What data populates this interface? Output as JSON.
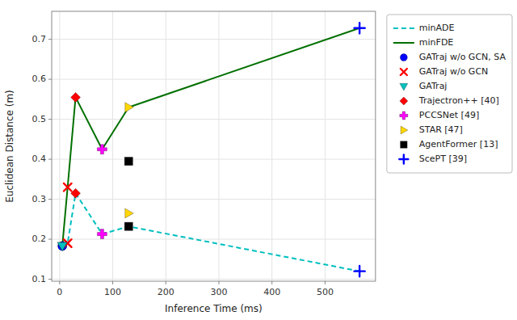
{
  "chart_data": {
    "type": "line",
    "xlabel": "Inference Time (ms)",
    "ylabel": "Euclidean Distance (m)",
    "xlim": [
      -15,
      595
    ],
    "ylim": [
      0.095,
      0.77
    ],
    "xticks": [
      0,
      100,
      200,
      300,
      400,
      500
    ],
    "yticks": [
      0.1,
      0.2,
      0.3,
      0.4,
      0.5,
      0.6,
      0.7
    ],
    "grid": true,
    "legend": "right",
    "series": [
      {
        "name": "minADE",
        "type": "line",
        "color": "#00BFBF",
        "line_style": "dashed",
        "x": [
          5,
          15,
          30,
          80,
          130,
          565
        ],
        "values": [
          0.183,
          0.19,
          0.315,
          0.213,
          0.232,
          0.12
        ]
      },
      {
        "name": "minFDE",
        "type": "line",
        "color": "#007000",
        "line_style": "solid",
        "x": [
          5,
          15,
          30,
          80,
          130,
          565
        ],
        "values": [
          0.183,
          0.33,
          0.555,
          0.425,
          0.53,
          0.728
        ]
      },
      {
        "name": "GATraj w/o GCN, SA",
        "type": "scatter",
        "marker": "circle",
        "color": "blue",
        "x": [
          5,
          5
        ],
        "values": [
          0.183,
          0.183
        ]
      },
      {
        "name": "GATraj w/o GCN",
        "type": "scatter",
        "marker": "x",
        "color": "red",
        "x": [
          15,
          15
        ],
        "values": [
          0.19,
          0.33
        ]
      },
      {
        "name": "GATraj",
        "type": "scatter",
        "marker": "triangle-down",
        "color": "#00BFBF",
        "x": [
          5,
          5
        ],
        "values": [
          0.183,
          0.183
        ]
      },
      {
        "name": "Trajectron++ [40]",
        "type": "scatter",
        "marker": "diamond",
        "color": "red",
        "x": [
          30,
          30
        ],
        "values": [
          0.315,
          0.555
        ]
      },
      {
        "name": "PCCSNet [49]",
        "type": "scatter",
        "marker": "plus-filled",
        "color": "magenta",
        "x": [
          80,
          80
        ],
        "values": [
          0.213,
          0.425
        ]
      },
      {
        "name": "STAR [47]",
        "type": "scatter",
        "marker": "triangle-right",
        "color": "gold",
        "x": [
          130,
          130
        ],
        "values": [
          0.265,
          0.53
        ]
      },
      {
        "name": "AgentFormer [13]",
        "type": "scatter",
        "marker": "square",
        "color": "black",
        "x": [
          130,
          130
        ],
        "values": [
          0.232,
          0.395
        ]
      },
      {
        "name": "ScePT [39]",
        "type": "scatter",
        "marker": "plus",
        "color": "blue",
        "x": [
          565,
          565
        ],
        "values": [
          0.12,
          0.728
        ]
      }
    ]
  }
}
